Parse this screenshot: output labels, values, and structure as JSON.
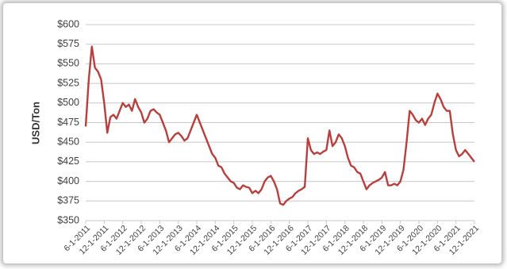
{
  "chart_data": {
    "type": "line",
    "ylabel": "USD/Ton",
    "x": [
      "6-1-2011",
      "7-1-2011",
      "8-1-2011",
      "9-1-2011",
      "10-1-2011",
      "11-1-2011",
      "12-1-2011",
      "1-1-2012",
      "2-1-2012",
      "3-1-2012",
      "4-1-2012",
      "5-1-2012",
      "6-1-2012",
      "7-1-2012",
      "8-1-2012",
      "9-1-2012",
      "10-1-2012",
      "11-1-2012",
      "12-1-2012",
      "1-1-2013",
      "2-1-2013",
      "3-1-2013",
      "4-1-2013",
      "5-1-2013",
      "6-1-2013",
      "7-1-2013",
      "8-1-2013",
      "9-1-2013",
      "10-1-2013",
      "11-1-2013",
      "12-1-2013",
      "1-1-2014",
      "2-1-2014",
      "3-1-2014",
      "4-1-2014",
      "5-1-2014",
      "6-1-2014",
      "7-1-2014",
      "8-1-2014",
      "9-1-2014",
      "10-1-2014",
      "11-1-2014",
      "12-1-2014",
      "1-1-2015",
      "2-1-2015",
      "3-1-2015",
      "4-1-2015",
      "5-1-2015",
      "6-1-2015",
      "7-1-2015",
      "8-1-2015",
      "9-1-2015",
      "10-1-2015",
      "11-1-2015",
      "12-1-2015",
      "1-1-2016",
      "2-1-2016",
      "3-1-2016",
      "4-1-2016",
      "5-1-2016",
      "6-1-2016",
      "7-1-2016",
      "8-1-2016",
      "9-1-2016",
      "10-1-2016",
      "11-1-2016",
      "12-1-2016",
      "1-1-2017",
      "2-1-2017",
      "3-1-2017",
      "4-1-2017",
      "5-1-2017",
      "6-1-2017",
      "7-1-2017",
      "8-1-2017",
      "9-1-2017",
      "10-1-2017",
      "11-1-2017",
      "12-1-2017",
      "1-1-2018",
      "2-1-2018",
      "3-1-2018",
      "4-1-2018",
      "5-1-2018",
      "6-1-2018",
      "7-1-2018",
      "8-1-2018",
      "9-1-2018",
      "10-1-2018",
      "11-1-2018",
      "12-1-2018",
      "1-1-2019",
      "2-1-2019",
      "3-1-2019",
      "4-1-2019",
      "5-1-2019",
      "6-1-2019",
      "7-1-2019",
      "8-1-2019",
      "9-1-2019",
      "10-1-2019",
      "11-1-2019",
      "12-1-2019",
      "1-1-2020",
      "2-1-2020",
      "3-1-2020",
      "4-1-2020",
      "5-1-2020",
      "6-1-2020",
      "7-1-2020",
      "8-1-2020",
      "9-1-2020",
      "10-1-2020",
      "11-1-2020",
      "12-1-2020",
      "1-1-2021",
      "2-1-2021",
      "3-1-2021",
      "4-1-2021",
      "5-1-2021",
      "6-1-2021",
      "7-1-2021",
      "8-1-2021",
      "9-1-2021",
      "10-1-2021",
      "11-1-2021",
      "12-1-2021"
    ],
    "series": [
      {
        "color": "#b5403e",
        "values": [
          470,
          530,
          572,
          545,
          540,
          530,
          500,
          462,
          482,
          485,
          480,
          490,
          500,
          495,
          498,
          490,
          505,
          495,
          488,
          475,
          480,
          490,
          492,
          488,
          485,
          475,
          465,
          450,
          455,
          460,
          462,
          458,
          452,
          455,
          465,
          475,
          485,
          475,
          465,
          455,
          445,
          435,
          430,
          420,
          418,
          410,
          405,
          400,
          398,
          392,
          390,
          395,
          393,
          392,
          385,
          388,
          385,
          390,
          400,
          405,
          407,
          400,
          390,
          372,
          370,
          375,
          378,
          380,
          385,
          388,
          390,
          393,
          455,
          440,
          435,
          437,
          435,
          438,
          440,
          465,
          445,
          450,
          460,
          455,
          445,
          430,
          420,
          418,
          412,
          410,
          400,
          390,
          395,
          398,
          400,
          402,
          405,
          412,
          395,
          395,
          397,
          395,
          400,
          415,
          450,
          490,
          485,
          478,
          475,
          480,
          472,
          480,
          485,
          500,
          512,
          505,
          495,
          490,
          490,
          460,
          440,
          432,
          435,
          440,
          435,
          430,
          425
        ]
      }
    ],
    "xticks": [
      "6-1-2011",
      "12-1-2011",
      "6-1-2012",
      "12-1-2012",
      "6-1-2013",
      "12-1-2013",
      "6-1-2014",
      "12-1-2014",
      "6-1-2015",
      "12-1-2015",
      "6-1-2016",
      "12-1-2016",
      "6-1-2017",
      "12-1-2017",
      "6-1-2018",
      "12-1-2018",
      "6-1-2019",
      "12-1-2019",
      "6-1-2020",
      "12-1-2020",
      "6-1-2021",
      "12-1-2021"
    ],
    "ylim": [
      350,
      600
    ],
    "yticks": [
      {
        "value": 350,
        "label": "$350"
      },
      {
        "value": 375,
        "label": "$375"
      },
      {
        "value": 400,
        "label": "$400"
      },
      {
        "value": 425,
        "label": "$425"
      },
      {
        "value": 450,
        "label": "$450"
      },
      {
        "value": 475,
        "label": "$475"
      },
      {
        "value": 500,
        "label": "$500"
      },
      {
        "value": 525,
        "label": "$525"
      },
      {
        "value": 550,
        "label": "$550"
      },
      {
        "value": 575,
        "label": "$575"
      },
      {
        "value": 600,
        "label": "$600"
      }
    ],
    "grid": true
  }
}
